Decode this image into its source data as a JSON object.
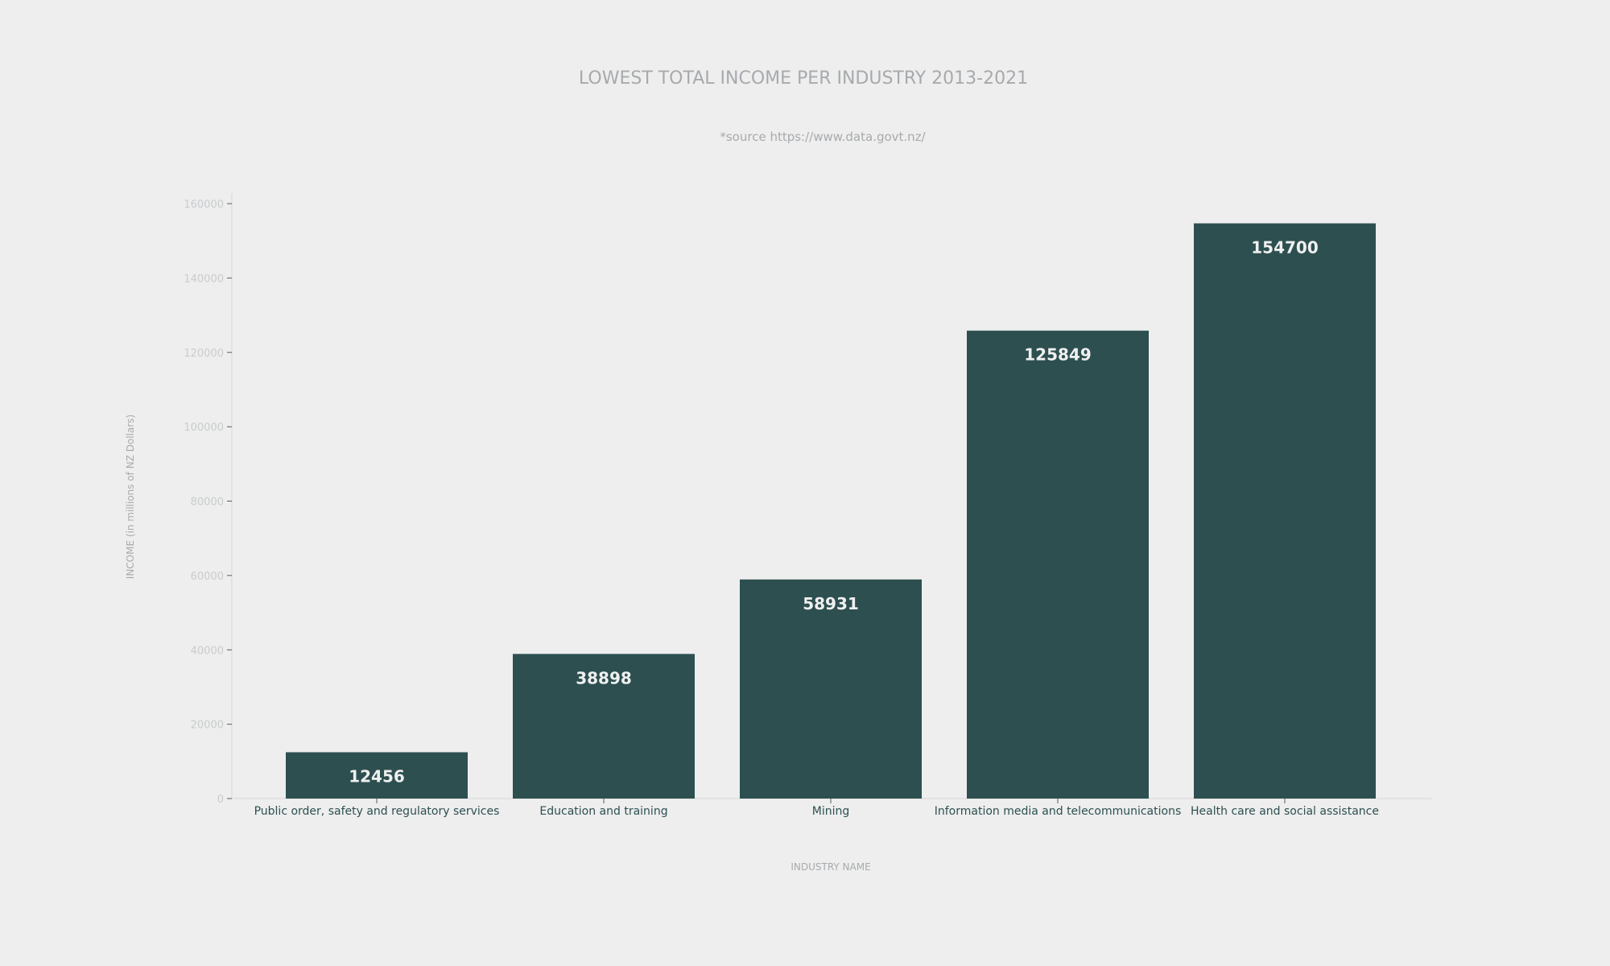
{
  "chart_data": {
    "type": "bar",
    "title": "LOWEST TOTAL INCOME PER INDUSTRY 2013-2021",
    "subtitle": "*source https://www.data.govt.nz/",
    "xlabel": "INDUSTRY NAME",
    "ylabel": "INCOME (in millions of NZ Dollars)",
    "categories": [
      "Public order, safety and regulatory services",
      "Education and training",
      "Mining",
      "Information media and telecommunications",
      "Health care and social assistance"
    ],
    "values": [
      12456,
      38898,
      58931,
      125849,
      154700
    ],
    "ylim": [
      0,
      160000
    ],
    "yticks": [
      0,
      20000,
      40000,
      60000,
      80000,
      100000,
      120000,
      140000,
      160000
    ],
    "grid": false,
    "legend": "none",
    "bar_color": "#2d4f50",
    "label_color": "#f0f0f0",
    "background": "#eeeeee"
  }
}
